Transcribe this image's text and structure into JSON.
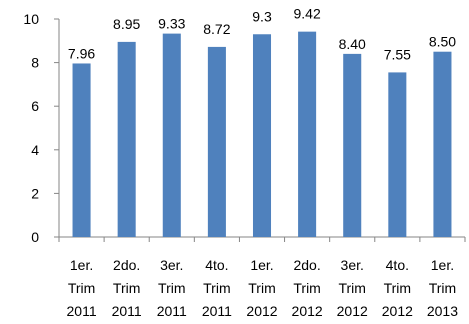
{
  "chart_data": {
    "type": "bar",
    "categories": [
      [
        "1er.",
        "Trim",
        "2011"
      ],
      [
        "2do.",
        "Trim",
        "2011"
      ],
      [
        "3er.",
        "Trim",
        "2011"
      ],
      [
        "4to.",
        "Trim",
        "2011"
      ],
      [
        "1er.",
        "Trim",
        "2012"
      ],
      [
        "2do.",
        "Trim",
        "2012"
      ],
      [
        "3er.",
        "Trim",
        "2012"
      ],
      [
        "4to.",
        "Trim",
        "2012"
      ],
      [
        "1er.",
        "Trim",
        "2013"
      ]
    ],
    "values": [
      7.96,
      8.95,
      9.33,
      8.72,
      9.3,
      9.42,
      8.4,
      7.55,
      8.5
    ],
    "data_labels": [
      "7.96",
      "8.95",
      "9.33",
      "8.72",
      "9.3",
      "9.42",
      "8.40",
      "7.55",
      "8.50"
    ],
    "ylim": [
      0,
      10
    ],
    "yticks": [
      0,
      2,
      4,
      6,
      8,
      10
    ],
    "grid": false,
    "legend": "none",
    "colors": {
      "bar": "#4f81bd",
      "axis": "#868686"
    }
  }
}
